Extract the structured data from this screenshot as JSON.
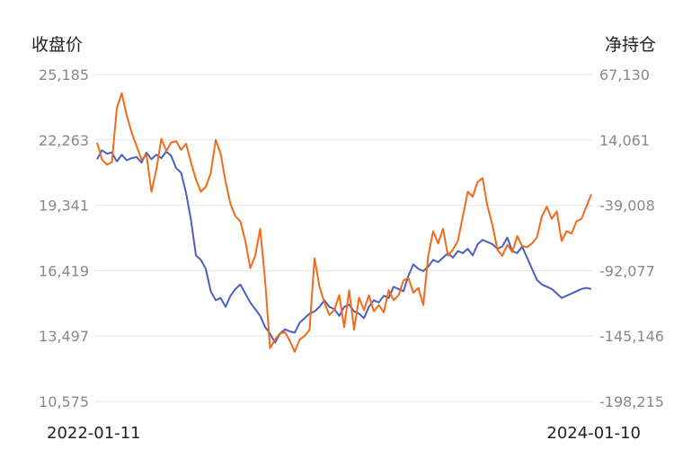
{
  "chart_data": {
    "type": "line",
    "y_left_title": "收盘价",
    "y_right_title": "净持仓",
    "x_start_label": "2022-01-11",
    "x_end_label": "2024-01-10",
    "y_left_ticks": [
      "25,185",
      "22,263",
      "19,341",
      "16,419",
      "13,497",
      "10,575"
    ],
    "y_right_ticks": [
      "67,130",
      "14,061",
      "-39,008",
      "-92,077",
      "-145,146",
      "-198,215"
    ],
    "y_left_range": [
      10575,
      25185
    ],
    "y_right_range": [
      -198215,
      67130
    ],
    "x_range": [
      0,
      100
    ],
    "grid": true,
    "colors": {
      "close": "#4a60c0",
      "net_position": "#f26a1b"
    },
    "series": [
      {
        "key": "close",
        "axis": "left",
        "x": [
          0,
          1,
          2,
          3,
          4,
          5,
          6,
          7,
          8,
          9,
          10,
          11,
          12,
          13,
          14,
          15,
          16,
          17,
          18,
          19,
          20,
          21,
          22,
          23,
          24,
          25,
          26,
          27,
          28,
          29,
          30,
          31,
          32,
          33,
          34,
          35,
          36,
          37,
          38,
          39,
          40,
          41,
          42,
          43,
          44,
          45,
          46,
          47,
          48,
          49,
          50,
          51,
          52,
          53,
          54,
          55,
          56,
          57,
          58,
          59,
          60,
          61,
          62,
          63,
          64,
          65,
          66,
          67,
          68,
          69,
          70,
          71,
          72,
          73,
          74,
          75,
          76,
          77,
          78,
          79,
          80,
          81,
          82,
          83,
          84,
          85,
          86,
          87,
          88,
          89,
          90,
          91,
          92,
          93,
          94,
          95,
          96,
          97,
          98,
          99,
          100
        ],
        "y": [
          21400,
          21800,
          21650,
          21700,
          21300,
          21600,
          21350,
          21450,
          21500,
          21250,
          21700,
          21400,
          21600,
          21450,
          21750,
          21550,
          21000,
          20800,
          19900,
          18700,
          17100,
          16900,
          16500,
          15500,
          15100,
          15200,
          14800,
          15300,
          15600,
          15800,
          15400,
          15000,
          14700,
          14400,
          13900,
          13600,
          13200,
          13600,
          13800,
          13700,
          13650,
          14100,
          14300,
          14500,
          14600,
          14800,
          15100,
          14800,
          14700,
          14400,
          14800,
          14900,
          14600,
          14500,
          14300,
          14800,
          15100,
          15000,
          15300,
          15200,
          15700,
          15600,
          15500,
          16200,
          16700,
          16500,
          16400,
          16600,
          16900,
          16800,
          17000,
          17200,
          17000,
          17300,
          17200,
          17400,
          17100,
          17600,
          17800,
          17700,
          17600,
          17400,
          17500,
          17900,
          17300,
          17200,
          17500,
          17000,
          16500,
          16000,
          15800,
          15700,
          15600,
          15400,
          15200,
          15300,
          15400,
          15500,
          15600,
          15650,
          15600
        ]
      },
      {
        "key": "net_position",
        "axis": "right",
        "x": [
          0,
          1,
          2,
          3,
          4,
          5,
          6,
          7,
          8,
          9,
          10,
          11,
          12,
          13,
          14,
          15,
          16,
          17,
          18,
          19,
          20,
          21,
          22,
          23,
          24,
          25,
          26,
          27,
          28,
          29,
          30,
          31,
          32,
          33,
          34,
          35,
          36,
          37,
          38,
          39,
          40,
          41,
          42,
          43,
          44,
          45,
          46,
          47,
          48,
          49,
          50,
          51,
          52,
          53,
          54,
          55,
          56,
          57,
          58,
          59,
          60,
          61,
          62,
          63,
          64,
          65,
          66,
          67,
          68,
          69,
          70,
          71,
          72,
          73,
          74,
          75,
          76,
          77,
          78,
          79,
          80,
          81,
          82,
          83,
          84,
          85,
          86,
          87,
          88,
          89,
          90,
          91,
          92,
          93,
          94,
          95,
          96,
          97,
          98,
          99,
          100
        ],
        "y": [
          12000,
          -2000,
          -6000,
          -4000,
          40000,
          52000,
          34000,
          20000,
          9000,
          -2000,
          2000,
          -28000,
          -10000,
          15000,
          5000,
          12000,
          13000,
          6000,
          11000,
          -4000,
          -18000,
          -28000,
          -24000,
          -13000,
          14000,
          3000,
          -20000,
          -38000,
          -48000,
          -52000,
          -68000,
          -90000,
          -80000,
          -58000,
          -100000,
          -155000,
          -148000,
          -143000,
          -142000,
          -149000,
          -158000,
          -148000,
          -145000,
          -140000,
          -82000,
          -105000,
          -118000,
          -128000,
          -124000,
          -112000,
          -138000,
          -108000,
          -140000,
          -114000,
          -124000,
          -112000,
          -125000,
          -120000,
          -126000,
          -108000,
          -116000,
          -112000,
          -100000,
          -98000,
          -110000,
          -106000,
          -120000,
          -80000,
          -60000,
          -70000,
          -58000,
          -80000,
          -75000,
          -68000,
          -48000,
          -28000,
          -32000,
          -20000,
          -17000,
          -40000,
          -55000,
          -75000,
          -80000,
          -71000,
          -77000,
          -64000,
          -72000,
          -73000,
          -70000,
          -65000,
          -48000,
          -40000,
          -50000,
          -44000,
          -68000,
          -60000,
          -62000,
          -52000,
          -50000,
          -40000,
          -30000
        ]
      }
    ]
  }
}
